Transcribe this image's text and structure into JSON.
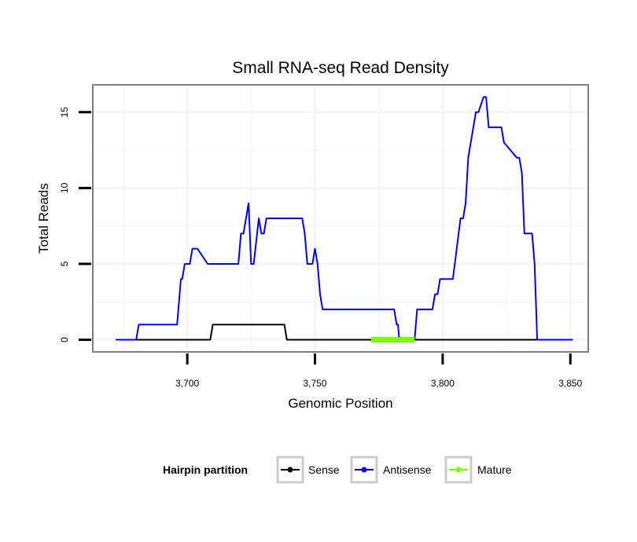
{
  "chart_data": {
    "type": "line",
    "title": "Small RNA-seq Read Density",
    "xlabel": "Genomic Position",
    "ylabel": "Total Reads",
    "xlim": [
      3663,
      3857
    ],
    "ylim": [
      -0.8,
      16.8
    ],
    "xticks": [
      3700,
      3750,
      3800,
      3850
    ],
    "xtick_labels": [
      "3,700",
      "3,750",
      "3,800",
      "3,850"
    ],
    "yticks": [
      0,
      5,
      10,
      15
    ],
    "ytick_labels": [
      "0",
      "5",
      "10",
      "15"
    ],
    "grid": true,
    "legend": {
      "title": "Hairpin partition",
      "position": "bottom",
      "entries": [
        {
          "label": "Sense",
          "color": "#000000"
        },
        {
          "label": "Antisense",
          "color": "#0000ff"
        },
        {
          "label": "Mature",
          "color": "#7cfc00"
        }
      ]
    },
    "series": [
      {
        "name": "Sense",
        "color": "#000000",
        "x": [
          3672,
          3709,
          3710,
          3738,
          3739,
          3851
        ],
        "y": [
          0,
          0,
          1,
          1,
          0,
          0
        ]
      },
      {
        "name": "Antisense",
        "color": "#0000ff",
        "x": [
          3672,
          3680,
          3681,
          3696,
          3697,
          3697.5,
          3698,
          3699,
          3701,
          3702,
          3704,
          3708,
          3709,
          3720,
          3721,
          3722,
          3724,
          3725,
          3726,
          3728,
          3729,
          3730,
          3731,
          3745,
          3746,
          3747,
          3749,
          3750,
          3751,
          3752,
          3753,
          3781,
          3782,
          3782.5,
          3783,
          3789,
          3790,
          3796,
          3797,
          3798,
          3799,
          3800,
          3801,
          3802,
          3804,
          3807,
          3808,
          3809,
          3810,
          3812,
          3813,
          3814,
          3816,
          3817,
          3818,
          3823,
          3824,
          3829,
          3830,
          3831,
          3832,
          3835,
          3836,
          3837,
          3851
        ],
        "y": [
          0,
          0,
          1,
          1,
          3,
          4,
          4,
          5,
          5,
          6,
          6,
          5,
          5,
          5,
          7,
          7,
          9,
          5,
          5,
          8,
          7,
          7,
          8,
          8,
          7,
          5,
          5,
          6,
          5,
          3,
          2,
          2,
          1,
          1,
          0,
          0,
          2,
          2,
          3,
          3,
          4,
          4,
          4,
          4,
          4,
          8,
          8,
          9,
          12,
          14,
          15,
          15,
          16,
          16,
          14,
          14,
          13,
          12,
          12,
          11,
          7,
          7,
          5,
          0,
          0
        ]
      },
      {
        "name": "Mature",
        "color": "#7cfc00",
        "x": [
          3772,
          3789
        ],
        "y": [
          0,
          0
        ]
      }
    ]
  }
}
